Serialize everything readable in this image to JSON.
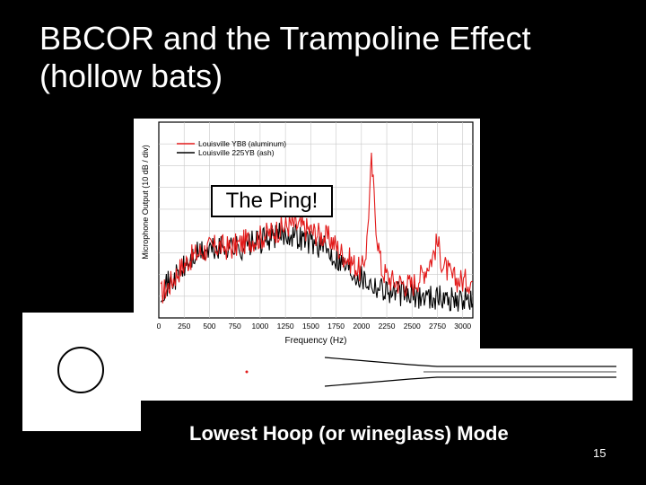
{
  "title": "BBCOR and the Trampoline Effect (hollow bats)",
  "ping_label": "The Ping!",
  "mode_caption": "Lowest Hoop (or wineglass) Mode",
  "slide_number": "15",
  "chart_data": {
    "type": "line",
    "title": "",
    "xlabel": "Frequency (Hz)",
    "ylabel": "Microphone Output (10 dB / div)",
    "xlim": [
      0,
      3100
    ],
    "ylim": [
      -70,
      20
    ],
    "xticks": [
      0,
      250,
      500,
      750,
      1000,
      1250,
      1500,
      1750,
      2000,
      2250,
      2500,
      2750,
      3000
    ],
    "grid": true,
    "legend": "top-left",
    "series": [
      {
        "name": "Louisville YB8 (aluminum)",
        "color": "#e21a1a",
        "x": [
          0,
          100,
          200,
          300,
          400,
          500,
          600,
          700,
          800,
          900,
          1000,
          1100,
          1200,
          1300,
          1400,
          1500,
          1600,
          1700,
          1800,
          1900,
          2000,
          2050,
          2100,
          2150,
          2200,
          2300,
          2400,
          2500,
          2600,
          2700,
          2750,
          2800,
          2900,
          3000,
          3100
        ],
        "y": [
          -60,
          -55,
          -48,
          -43,
          -40,
          -38,
          -37,
          -38,
          -36,
          -34,
          -33,
          -31,
          -29,
          -27,
          -28,
          -30,
          -32,
          -34,
          -40,
          -44,
          -49,
          -38,
          2,
          -30,
          -48,
          -53,
          -54,
          -55,
          -50,
          -42,
          -35,
          -45,
          -52,
          -53,
          -53
        ]
      },
      {
        "name": "Louisville 225YB (ash)",
        "color": "#000000",
        "x": [
          0,
          100,
          200,
          300,
          400,
          500,
          600,
          700,
          800,
          900,
          1000,
          1100,
          1200,
          1300,
          1400,
          1500,
          1600,
          1700,
          1800,
          1900,
          2000,
          2100,
          2200,
          2300,
          2400,
          2500,
          2600,
          2700,
          2800,
          2900,
          3000,
          3100
        ],
        "y": [
          -58,
          -54,
          -50,
          -44,
          -40,
          -39,
          -38,
          -37,
          -38,
          -36,
          -35,
          -33,
          -32,
          -31,
          -33,
          -35,
          -37,
          -40,
          -44,
          -48,
          -51,
          -54,
          -56,
          -58,
          -59,
          -60,
          -60,
          -60,
          -61,
          -61,
          -62,
          -62
        ]
      }
    ]
  }
}
